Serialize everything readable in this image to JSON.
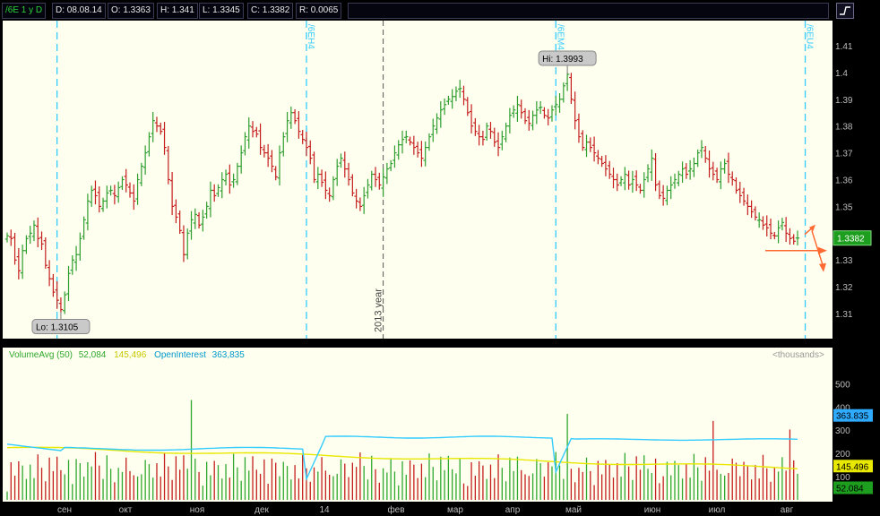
{
  "header": {
    "symbol": "/6E 1 y D",
    "date": "D: 08.08.14",
    "open": "O: 1.3363",
    "high": "H: 1.341",
    "low": "L: 1.3345",
    "close": "C: 1.3382",
    "range": "R: 0.0065",
    "draw_button_icon": "chart-style-icon"
  },
  "colors": {
    "up": "#2e9e2e",
    "down": "#c41e1e",
    "expiry_line": "#33ccff",
    "year_line": "#555555",
    "volume_avg": "#e8e800",
    "open_interest": "#33ccff",
    "last_price_bg": "#1e9e1e",
    "arrow": "#ff6a33"
  },
  "chart_data": [
    {
      "type": "ohlc-bar",
      "title": "/6E 1 y D",
      "y_ticks": [
        "1.41",
        "1.4",
        "1.39",
        "1.38",
        "1.37",
        "1.36",
        "1.35",
        "1.34",
        "1.33",
        "1.32",
        "1.31"
      ],
      "ylim": [
        1.304,
        1.416
      ],
      "x_months": [
        "сен",
        "окт",
        "ноя",
        "дек",
        "14",
        "фев",
        "мар",
        "апр",
        "май",
        "июн",
        "июл",
        "авг"
      ],
      "expiry_markers": [
        {
          "label": "",
          "bar": 13
        },
        {
          "label": "/6EH4",
          "bar": 78
        },
        {
          "label": "/6EM4",
          "bar": 143
        },
        {
          "label": "/6EU4",
          "bar": 208
        }
      ],
      "year_marker": {
        "label": "2013 year",
        "bar": 98
      },
      "high_label": "Hi: 1.3993",
      "high_value": 1.3993,
      "low_label": "Lo: 1.3105",
      "low_value": 1.3105,
      "last_price": "1.3382",
      "series_closes": [
        1.339,
        1.338,
        1.33,
        1.326,
        1.3335,
        1.338,
        1.34,
        1.343,
        1.338,
        1.336,
        1.328,
        1.323,
        1.318,
        1.315,
        1.3115,
        1.317,
        1.325,
        1.33,
        1.332,
        1.338,
        1.345,
        1.352,
        1.356,
        1.354,
        1.35,
        1.352,
        1.355,
        1.356,
        1.354,
        1.357,
        1.36,
        1.358,
        1.355,
        1.352,
        1.36,
        1.365,
        1.37,
        1.376,
        1.382,
        1.38,
        1.378,
        1.372,
        1.36,
        1.35,
        1.346,
        1.341,
        1.332,
        1.34,
        1.345,
        1.347,
        1.343,
        1.346,
        1.35,
        1.356,
        1.354,
        1.357,
        1.36,
        1.362,
        1.358,
        1.36,
        1.365,
        1.37,
        1.376,
        1.38,
        1.378,
        1.377,
        1.372,
        1.37,
        1.368,
        1.365,
        1.361,
        1.37,
        1.376,
        1.382,
        1.385,
        1.382,
        1.378,
        1.375,
        1.372,
        1.368,
        1.36,
        1.362,
        1.359,
        1.356,
        1.354,
        1.36,
        1.365,
        1.368,
        1.364,
        1.36,
        1.355,
        1.352,
        1.35,
        1.354,
        1.358,
        1.362,
        1.36,
        1.358,
        1.361,
        1.364,
        1.366,
        1.37,
        1.373,
        1.375,
        1.376,
        1.374,
        1.372,
        1.37,
        1.368,
        1.372,
        1.376,
        1.38,
        1.383,
        1.386,
        1.388,
        1.39,
        1.391,
        1.393,
        1.394,
        1.39,
        1.385,
        1.38,
        1.378,
        1.376,
        1.375,
        1.38,
        1.378,
        1.374,
        1.372,
        1.376,
        1.38,
        1.384,
        1.386,
        1.388,
        1.385,
        1.382,
        1.381,
        1.384,
        1.386,
        1.387,
        1.384,
        1.383,
        1.386,
        1.388,
        1.39,
        1.395,
        1.3993,
        1.39,
        1.382,
        1.376,
        1.372,
        1.374,
        1.372,
        1.37,
        1.368,
        1.366,
        1.364,
        1.362,
        1.36,
        1.358,
        1.36,
        1.362,
        1.358,
        1.36,
        1.358,
        1.356,
        1.36,
        1.364,
        1.368,
        1.358,
        1.354,
        1.353,
        1.356,
        1.358,
        1.36,
        1.362,
        1.364,
        1.362,
        1.364,
        1.366,
        1.37,
        1.372,
        1.368,
        1.364,
        1.362,
        1.36,
        1.364,
        1.366,
        1.362,
        1.36,
        1.356,
        1.354,
        1.352,
        1.35,
        1.348,
        1.346,
        1.345,
        1.343,
        1.342,
        1.34,
        1.339,
        1.342,
        1.344,
        1.34,
        1.338,
        1.337,
        1.3382
      ]
    },
    {
      "type": "bar",
      "title": "VolumeAvg (50)",
      "legend": [
        {
          "name": "VolumeAvg (50)",
          "value": "52,084",
          "color": "#2ea82e"
        },
        {
          "name": "",
          "value": "145,496",
          "color": "#e8e800"
        },
        {
          "name": "OpenInterest",
          "value": "363,835",
          "color": "#33ccff"
        }
      ],
      "units_label": "<thousands>",
      "y_ticks": [
        "500",
        "400",
        "300",
        "200",
        "100"
      ],
      "ylim": [
        0,
        540
      ],
      "axis_tags": [
        {
          "value": "363.835",
          "level": 363.8,
          "bg": "#2eaaff"
        },
        {
          "value": "145.496",
          "level": 145.5,
          "bg": "#e8e800"
        },
        {
          "value": "52.084",
          "level": 52.1,
          "bg": "#1e9e1e"
        }
      ]
    }
  ]
}
